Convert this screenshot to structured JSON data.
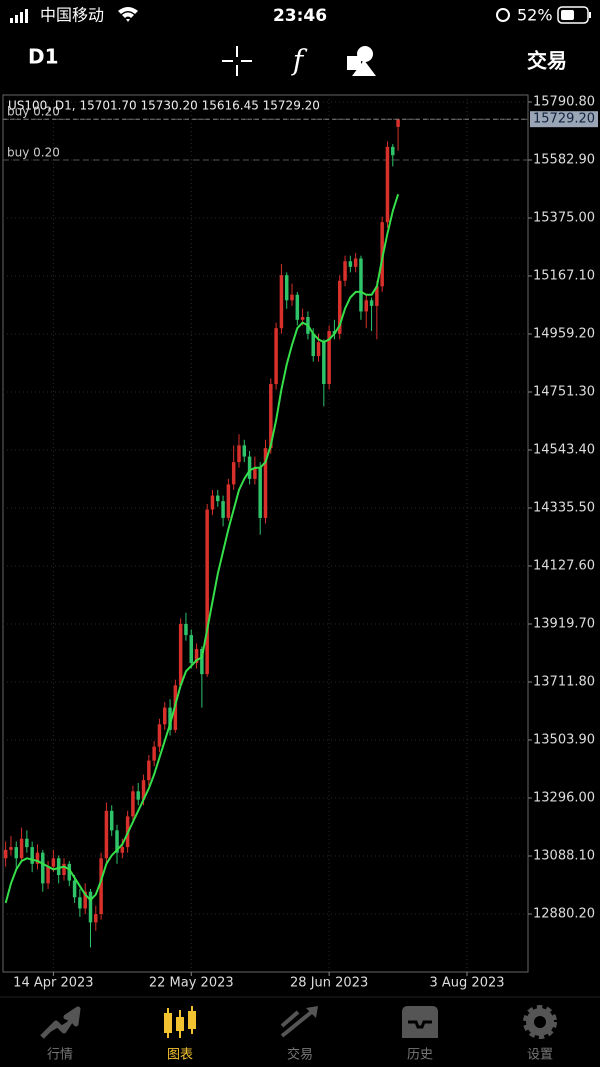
{
  "status_bar": {
    "carrier": "中国移动",
    "time": "23:46",
    "battery": "52%"
  },
  "toolbar": {
    "timeframe": "D1",
    "trade": "交易"
  },
  "chart_data": {
    "type": "candlestick",
    "title": "US100, D1, 15701.70 15730.20 15616.45 15729.20",
    "up_color": "#d8302a",
    "down_color": "#2fc36a",
    "grid": true,
    "ylim": [
      12672.3,
      15815.9
    ],
    "yticks": [
      {
        "value": 15790.8,
        "label": "15790.80"
      },
      {
        "value": 15582.9,
        "label": "15582.90"
      },
      {
        "value": 15375,
        "label": "15375.00"
      },
      {
        "value": 15167.1,
        "label": "15167.10"
      },
      {
        "value": 14959.2,
        "label": "14959.20"
      },
      {
        "value": 14751.3,
        "label": "14751.30"
      },
      {
        "value": 14543.4,
        "label": "14543.40"
      },
      {
        "value": 14335.5,
        "label": "14335.50"
      },
      {
        "value": 14127.6,
        "label": "14127.60"
      },
      {
        "value": 13919.7,
        "label": "13919.70"
      },
      {
        "value": 13711.8,
        "label": "13711.80"
      },
      {
        "value": 13503.9,
        "label": "13503.90"
      },
      {
        "value": 13296,
        "label": "13296.00"
      },
      {
        "value": 13088.1,
        "label": "13088.10"
      },
      {
        "value": 12880.2,
        "label": "12880.20"
      }
    ],
    "xlim": [
      0,
      99
    ],
    "xticks": [
      {
        "value": 9.5,
        "label": "14 Apr 2023"
      },
      {
        "value": 35.5,
        "label": "22 May 2023"
      },
      {
        "value": 61.5,
        "label": "28 Jun 2023"
      },
      {
        "value": 87.5,
        "label": "3 Aug 2023"
      }
    ],
    "current_price": {
      "value": 15729.2,
      "label": "15729.20"
    },
    "orders": [
      {
        "label": "buy 0.20",
        "price": 15729.2
      },
      {
        "label": "buy 0.20",
        "price": 15583
      }
    ],
    "ohlc": [
      [
        13080,
        13140,
        13050,
        13110
      ],
      [
        13110,
        13160,
        13090,
        13120
      ],
      [
        13120,
        13140,
        13040,
        13080
      ],
      [
        13080,
        13190,
        13070,
        13150
      ],
      [
        13150,
        13180,
        13100,
        13120
      ],
      [
        13120,
        13140,
        13030,
        13060
      ],
      [
        13060,
        13130,
        13040,
        13100
      ],
      [
        13100,
        13110,
        12960,
        12990
      ],
      [
        12990,
        13070,
        12970,
        13050
      ],
      [
        13050,
        13110,
        13030,
        13080
      ],
      [
        13080,
        13090,
        12990,
        13020
      ],
      [
        13020,
        13080,
        13000,
        13060
      ],
      [
        13060,
        13070,
        12980,
        13000
      ],
      [
        13000,
        13020,
        12920,
        12940
      ],
      [
        12940,
        12970,
        12870,
        12900
      ],
      [
        12900,
        12990,
        12880,
        12960
      ],
      [
        12960,
        12970,
        12760,
        12850
      ],
      [
        12850,
        12910,
        12820,
        12880
      ],
      [
        12880,
        13100,
        12860,
        13080
      ],
      [
        13080,
        13280,
        13060,
        13250
      ],
      [
        13250,
        13270,
        13160,
        13180
      ],
      [
        13180,
        13200,
        13060,
        13100
      ],
      [
        13100,
        13150,
        13080,
        13120
      ],
      [
        13120,
        13250,
        13100,
        13230
      ],
      [
        13230,
        13340,
        13210,
        13320
      ],
      [
        13320,
        13350,
        13270,
        13290
      ],
      [
        13290,
        13380,
        13270,
        13360
      ],
      [
        13360,
        13450,
        13340,
        13430
      ],
      [
        13430,
        13500,
        13410,
        13480
      ],
      [
        13480,
        13580,
        13460,
        13560
      ],
      [
        13560,
        13640,
        13540,
        13620
      ],
      [
        13620,
        13650,
        13520,
        13540
      ],
      [
        13540,
        13720,
        13530,
        13700
      ],
      [
        13700,
        13940,
        13690,
        13920
      ],
      [
        13920,
        13960,
        13860,
        13880
      ],
      [
        13880,
        13900,
        13760,
        13780
      ],
      [
        13780,
        13850,
        13760,
        13830
      ],
      [
        13830,
        13840,
        13620,
        13740
      ],
      [
        13740,
        14350,
        13730,
        14330
      ],
      [
        14330,
        14400,
        14310,
        14380
      ],
      [
        14380,
        14400,
        14340,
        14360
      ],
      [
        14360,
        14380,
        14270,
        14300
      ],
      [
        14300,
        14440,
        14290,
        14420
      ],
      [
        14420,
        14560,
        14400,
        14500
      ],
      [
        14500,
        14600,
        14480,
        14560
      ],
      [
        14560,
        14580,
        14500,
        14520
      ],
      [
        14520,
        14540,
        14420,
        14440
      ],
      [
        14440,
        14520,
        14420,
        14480
      ],
      [
        14480,
        14500,
        14240,
        14300
      ],
      [
        14300,
        14580,
        14280,
        14550
      ],
      [
        14550,
        14800,
        14530,
        14780
      ],
      [
        14780,
        15000,
        14760,
        14980
      ],
      [
        14980,
        15210,
        14960,
        15170
      ],
      [
        15170,
        15180,
        15050,
        15080
      ],
      [
        15080,
        15140,
        15060,
        15100
      ],
      [
        15100,
        15110,
        14990,
        15010
      ],
      [
        15010,
        15050,
        14990,
        15020
      ],
      [
        15020,
        15040,
        14940,
        14960
      ],
      [
        14960,
        14980,
        14860,
        14880
      ],
      [
        14880,
        14960,
        14860,
        14930
      ],
      [
        14930,
        14940,
        14700,
        14780
      ],
      [
        14780,
        14990,
        14760,
        14970
      ],
      [
        14970,
        15010,
        14940,
        14960
      ],
      [
        14960,
        15170,
        14940,
        15150
      ],
      [
        15150,
        15240,
        15130,
        15220
      ],
      [
        15220,
        15240,
        15180,
        15200
      ],
      [
        15200,
        15250,
        15180,
        15230
      ],
      [
        15230,
        15240,
        15010,
        15040
      ],
      [
        15040,
        15100,
        14980,
        15080
      ],
      [
        15080,
        15090,
        14970,
        15060
      ],
      [
        15060,
        15150,
        14940,
        15130
      ],
      [
        15130,
        15380,
        15110,
        15360
      ],
      [
        15360,
        15650,
        15340,
        15630
      ],
      [
        15630,
        15640,
        15560,
        15600
      ],
      [
        15701.7,
        15730.2,
        15616.45,
        15729.2
      ]
    ],
    "indicator": {
      "color": "#35e04a",
      "values": [
        12920,
        12990,
        13040,
        13070,
        13080,
        13075,
        13070,
        13060,
        13050,
        13040,
        13045,
        13050,
        13040,
        13010,
        12980,
        12950,
        12930,
        12950,
        13000,
        13060,
        13090,
        13110,
        13130,
        13170,
        13210,
        13250,
        13290,
        13330,
        13380,
        13440,
        13500,
        13560,
        13630,
        13700,
        13750,
        13770,
        13790,
        13800,
        13900,
        14000,
        14100,
        14180,
        14260,
        14330,
        14400,
        14440,
        14470,
        14480,
        14480,
        14500,
        14560,
        14650,
        14760,
        14850,
        14920,
        14980,
        15000,
        14990,
        14960,
        14940,
        14930,
        14940,
        14960,
        14990,
        15050,
        15090,
        15110,
        15110,
        15100,
        15100,
        15130,
        15230,
        15320,
        15400,
        15460
      ]
    }
  },
  "tab_bar": {
    "active": 1,
    "items": [
      "行情",
      "图表",
      "交易",
      "历史",
      "设置"
    ]
  }
}
